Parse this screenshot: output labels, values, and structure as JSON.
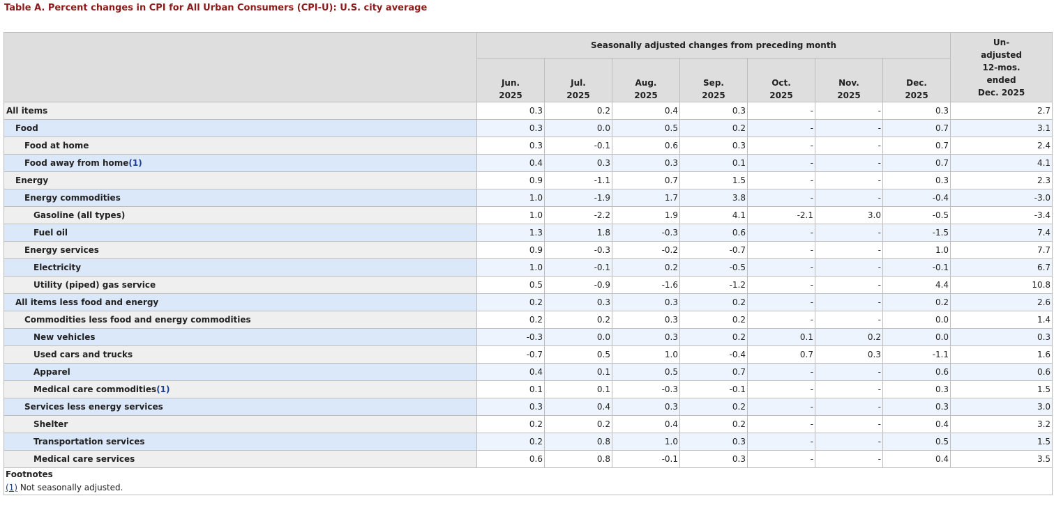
{
  "caption": "Table A. Percent changes in CPI for All Urban Consumers (CPI-U): U.S. city average",
  "header": {
    "group_label": "Seasonally adjusted changes from preceding month",
    "months": [
      {
        "line1": "Jun.",
        "line2": "2025"
      },
      {
        "line1": "Jul.",
        "line2": "2025"
      },
      {
        "line1": "Aug.",
        "line2": "2025"
      },
      {
        "line1": "Sep.",
        "line2": "2025"
      },
      {
        "line1": "Oct.",
        "line2": "2025"
      },
      {
        "line1": "Nov.",
        "line2": "2025"
      },
      {
        "line1": "Dec.",
        "line2": "2025"
      }
    ],
    "unadjusted_lines": [
      "Un-",
      "adjusted",
      "12-mos.",
      "ended",
      "Dec. 2025"
    ]
  },
  "rows": [
    {
      "label": "All items",
      "indent": 0,
      "values": [
        "0.3",
        "0.2",
        "0.4",
        "0.3",
        "-",
        "-",
        "0.3",
        "2.7"
      ]
    },
    {
      "label": "Food",
      "indent": 1,
      "values": [
        "0.3",
        "0.0",
        "0.5",
        "0.2",
        "-",
        "-",
        "0.7",
        "3.1"
      ]
    },
    {
      "label": "Food at home",
      "indent": 2,
      "values": [
        "0.3",
        "-0.1",
        "0.6",
        "0.3",
        "-",
        "-",
        "0.7",
        "2.4"
      ]
    },
    {
      "label": "Food away from home",
      "indent": 2,
      "footnote": "1",
      "values": [
        "0.4",
        "0.3",
        "0.3",
        "0.1",
        "-",
        "-",
        "0.7",
        "4.1"
      ]
    },
    {
      "label": "Energy",
      "indent": 1,
      "values": [
        "0.9",
        "-1.1",
        "0.7",
        "1.5",
        "-",
        "-",
        "0.3",
        "2.3"
      ]
    },
    {
      "label": "Energy commodities",
      "indent": 2,
      "values": [
        "1.0",
        "-1.9",
        "1.7",
        "3.8",
        "-",
        "-",
        "-0.4",
        "-3.0"
      ]
    },
    {
      "label": "Gasoline (all types)",
      "indent": 3,
      "values": [
        "1.0",
        "-2.2",
        "1.9",
        "4.1",
        "-2.1",
        "3.0",
        "-0.5",
        "-3.4"
      ]
    },
    {
      "label": "Fuel oil",
      "indent": 3,
      "values": [
        "1.3",
        "1.8",
        "-0.3",
        "0.6",
        "-",
        "-",
        "-1.5",
        "7.4"
      ]
    },
    {
      "label": "Energy services",
      "indent": 2,
      "values": [
        "0.9",
        "-0.3",
        "-0.2",
        "-0.7",
        "-",
        "-",
        "1.0",
        "7.7"
      ]
    },
    {
      "label": "Electricity",
      "indent": 3,
      "values": [
        "1.0",
        "-0.1",
        "0.2",
        "-0.5",
        "-",
        "-",
        "-0.1",
        "6.7"
      ]
    },
    {
      "label": "Utility (piped) gas service",
      "indent": 3,
      "values": [
        "0.5",
        "-0.9",
        "-1.6",
        "-1.2",
        "-",
        "-",
        "4.4",
        "10.8"
      ]
    },
    {
      "label": "All items less food and energy",
      "indent": 1,
      "values": [
        "0.2",
        "0.3",
        "0.3",
        "0.2",
        "-",
        "-",
        "0.2",
        "2.6"
      ]
    },
    {
      "label": "Commodities less food and energy commodities",
      "indent": 2,
      "values": [
        "0.2",
        "0.2",
        "0.3",
        "0.2",
        "-",
        "-",
        "0.0",
        "1.4"
      ]
    },
    {
      "label": "New vehicles",
      "indent": 3,
      "values": [
        "-0.3",
        "0.0",
        "0.3",
        "0.2",
        "0.1",
        "0.2",
        "0.0",
        "0.3"
      ]
    },
    {
      "label": "Used cars and trucks",
      "indent": 3,
      "values": [
        "-0.7",
        "0.5",
        "1.0",
        "-0.4",
        "0.7",
        "0.3",
        "-1.1",
        "1.6"
      ]
    },
    {
      "label": "Apparel",
      "indent": 3,
      "values": [
        "0.4",
        "0.1",
        "0.5",
        "0.7",
        "-",
        "-",
        "0.6",
        "0.6"
      ]
    },
    {
      "label": "Medical care commodities",
      "indent": 3,
      "footnote": "1",
      "values": [
        "0.1",
        "0.1",
        "-0.3",
        "-0.1",
        "-",
        "-",
        "0.3",
        "1.5"
      ]
    },
    {
      "label": "Services less energy services",
      "indent": 2,
      "values": [
        "0.3",
        "0.4",
        "0.3",
        "0.2",
        "-",
        "-",
        "0.3",
        "3.0"
      ]
    },
    {
      "label": "Shelter",
      "indent": 3,
      "values": [
        "0.2",
        "0.2",
        "0.4",
        "0.2",
        "-",
        "-",
        "0.4",
        "3.2"
      ]
    },
    {
      "label": "Transportation services",
      "indent": 3,
      "values": [
        "0.2",
        "0.8",
        "1.0",
        "0.3",
        "-",
        "-",
        "0.5",
        "1.5"
      ]
    },
    {
      "label": "Medical care services",
      "indent": 3,
      "values": [
        "0.6",
        "0.8",
        "-0.1",
        "0.3",
        "-",
        "-",
        "0.4",
        "3.5"
      ]
    }
  ],
  "footnotes": {
    "title": "Footnotes",
    "items": [
      {
        "marker": "(1)",
        "text": " Not seasonally adjusted."
      }
    ]
  },
  "colors": {
    "caption": "#8b1a1a",
    "header_bg": "#dedede",
    "alt_label_bg": "#dbe8f9",
    "alt_cell_bg": "#eef4fd",
    "plain_label_bg": "#efefef",
    "link": "#1b3f8c"
  }
}
